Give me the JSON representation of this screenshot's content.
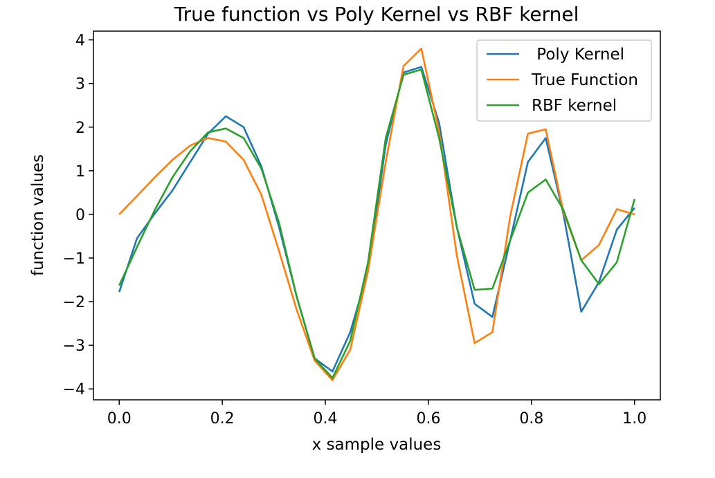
{
  "chart_data": {
    "type": "line",
    "title": "True function vs Poly Kernel vs RBF kernel",
    "xlabel": "x sample values",
    "ylabel": "function values",
    "xlim": [
      -0.05,
      1.05
    ],
    "ylim": [
      -4.25,
      4.2
    ],
    "xticks": [
      0.0,
      0.2,
      0.4,
      0.6,
      0.8,
      1.0
    ],
    "xtick_labels": [
      "0.0",
      "0.2",
      "0.4",
      "0.6",
      "0.8",
      "1.0"
    ],
    "yticks": [
      4,
      3,
      2,
      1,
      0,
      -1,
      -2,
      -3,
      -4
    ],
    "ytick_labels": [
      "4",
      "3",
      "2",
      "1",
      "0",
      "−1",
      "−2",
      "−3",
      "−4"
    ],
    "grid": false,
    "legend_position": "top-right",
    "x": [
      0.0,
      0.0345,
      0.069,
      0.1034,
      0.1379,
      0.1724,
      0.2069,
      0.2414,
      0.2759,
      0.3103,
      0.3448,
      0.3793,
      0.4138,
      0.4483,
      0.4828,
      0.5172,
      0.5517,
      0.5862,
      0.6207,
      0.6552,
      0.6897,
      0.7241,
      0.7586,
      0.7931,
      0.8276,
      0.8621,
      0.8966,
      0.931,
      0.9655,
      1.0
    ],
    "series": [
      {
        "name": " Poly Kernel",
        "color": "#1f77b4",
        "values": [
          -1.78,
          -0.55,
          0.02,
          0.55,
          1.2,
          1.85,
          2.25,
          2.0,
          1.1,
          -0.3,
          -1.9,
          -3.3,
          -3.6,
          -2.7,
          -1.3,
          1.6,
          3.25,
          3.38,
          2.1,
          -0.3,
          -2.05,
          -2.35,
          -0.6,
          1.2,
          1.75,
          0.0,
          -2.23,
          -1.55,
          -0.35,
          0.15
        ]
      },
      {
        "name": "True Function",
        "color": "#ff7f0e",
        "values": [
          0.0,
          0.42,
          0.85,
          1.25,
          1.58,
          1.75,
          1.67,
          1.25,
          0.45,
          -0.85,
          -2.2,
          -3.35,
          -3.8,
          -3.1,
          -1.3,
          1.2,
          3.4,
          3.8,
          1.9,
          -0.95,
          -2.95,
          -2.7,
          -0.05,
          1.85,
          1.95,
          0.05,
          -1.05,
          -0.7,
          0.12,
          0.0
        ]
      },
      {
        "name": "RBF kernel",
        "color": "#2ca02c",
        "values": [
          -1.63,
          -0.75,
          0.1,
          0.85,
          1.45,
          1.88,
          1.97,
          1.75,
          1.05,
          -0.2,
          -1.9,
          -3.3,
          -3.75,
          -2.9,
          -1.1,
          1.75,
          3.2,
          3.32,
          1.75,
          -0.3,
          -1.73,
          -1.7,
          -0.6,
          0.5,
          0.8,
          0.1,
          -1.05,
          -1.6,
          -1.1,
          0.35
        ]
      }
    ]
  }
}
